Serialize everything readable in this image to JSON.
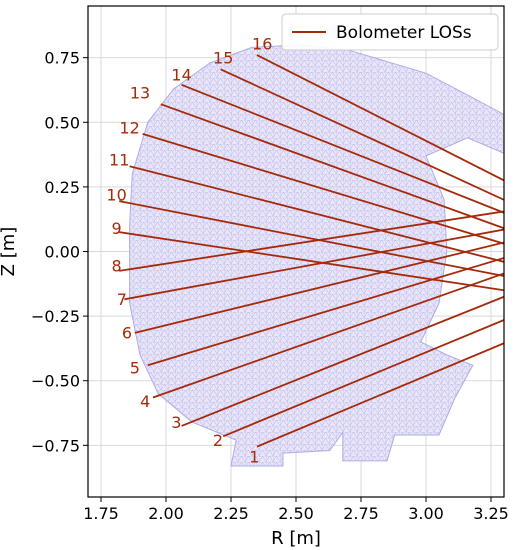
{
  "chart_data": {
    "type": "line",
    "title": "",
    "xlabel": "R [m]",
    "ylabel": "Z [m]",
    "xlim": [
      1.7,
      3.3
    ],
    "ylim": [
      -0.95,
      0.95
    ],
    "xticks": [
      "1.75",
      "2.00",
      "2.25",
      "2.50",
      "2.75",
      "3.00",
      "3.25"
    ],
    "xtick_values": [
      1.75,
      2.0,
      2.25,
      2.5,
      2.75,
      3.0,
      3.25
    ],
    "yticks": [
      "−0.75",
      "−0.50",
      "−0.25",
      "0.00",
      "0.25",
      "0.50",
      "0.75"
    ],
    "ytick_values": [
      -0.75,
      -0.5,
      -0.25,
      0.0,
      0.25,
      0.5,
      0.75
    ],
    "grid": true,
    "legend": {
      "placement": "top-right",
      "entries": [
        "Bolometer LOSs"
      ]
    },
    "colors": {
      "los": "#a52a0a",
      "mesh": "#a9a9e8",
      "mesh_edge": "#b6b0ea",
      "grid": "#d9d9d9"
    },
    "series": [
      {
        "label": "1",
        "x": [
          2.35,
          3.3
        ],
        "y": [
          -0.755,
          -0.355
        ]
      },
      {
        "label": "2",
        "x": [
          2.22,
          3.3
        ],
        "y": [
          -0.715,
          -0.265
        ]
      },
      {
        "label": "3",
        "x": [
          2.06,
          3.3
        ],
        "y": [
          -0.675,
          -0.175
        ]
      },
      {
        "label": "4",
        "x": [
          1.95,
          3.3
        ],
        "y": [
          -0.565,
          -0.085
        ]
      },
      {
        "label": "5",
        "x": [
          1.93,
          3.3
        ],
        "y": [
          -0.44,
          -0.025
        ]
      },
      {
        "label": "6",
        "x": [
          1.88,
          3.3
        ],
        "y": [
          -0.315,
          0.035
        ]
      },
      {
        "label": "7",
        "x": [
          1.84,
          3.3
        ],
        "y": [
          -0.185,
          0.085
        ]
      },
      {
        "label": "8",
        "x": [
          1.82,
          3.3
        ],
        "y": [
          -0.075,
          0.155
        ]
      },
      {
        "label": "9",
        "x": [
          1.82,
          3.3
        ],
        "y": [
          0.075,
          -0.15
        ]
      },
      {
        "label": "10",
        "x": [
          1.82,
          3.3
        ],
        "y": [
          0.195,
          -0.095
        ]
      },
      {
        "label": "11",
        "x": [
          1.86,
          3.3
        ],
        "y": [
          0.33,
          -0.04
        ]
      },
      {
        "label": "12",
        "x": [
          1.91,
          3.3
        ],
        "y": [
          0.455,
          0.03
        ]
      },
      {
        "label": "13",
        "x": [
          1.98,
          3.3
        ],
        "y": [
          0.57,
          0.09
        ]
      },
      {
        "label": "14",
        "x": [
          2.06,
          3.3
        ],
        "y": [
          0.645,
          0.15
        ]
      },
      {
        "label": "15",
        "x": [
          2.21,
          3.3
        ],
        "y": [
          0.705,
          0.2
        ]
      },
      {
        "label": "16",
        "x": [
          2.35,
          3.3
        ],
        "y": [
          0.76,
          0.275
        ]
      }
    ],
    "label_anchors": [
      {
        "label": "1",
        "x": 2.34,
        "y": -0.8
      },
      {
        "label": "2",
        "x": 2.2,
        "y": -0.735
      },
      {
        "label": "3",
        "x": 2.04,
        "y": -0.665
      },
      {
        "label": "4",
        "x": 1.92,
        "y": -0.585
      },
      {
        "label": "5",
        "x": 1.88,
        "y": -0.455
      },
      {
        "label": "6",
        "x": 1.85,
        "y": -0.32
      },
      {
        "label": "7",
        "x": 1.83,
        "y": -0.19
      },
      {
        "label": "8",
        "x": 1.81,
        "y": -0.06
      },
      {
        "label": "9",
        "x": 1.81,
        "y": 0.085
      },
      {
        "label": "10",
        "x": 1.81,
        "y": 0.215
      },
      {
        "label": "11",
        "x": 1.82,
        "y": 0.35
      },
      {
        "label": "12",
        "x": 1.86,
        "y": 0.475
      },
      {
        "label": "13",
        "x": 1.9,
        "y": 0.61
      },
      {
        "label": "14",
        "x": 2.06,
        "y": 0.68
      },
      {
        "label": "15",
        "x": 2.22,
        "y": 0.745
      },
      {
        "label": "16",
        "x": 2.37,
        "y": 0.8
      }
    ]
  }
}
